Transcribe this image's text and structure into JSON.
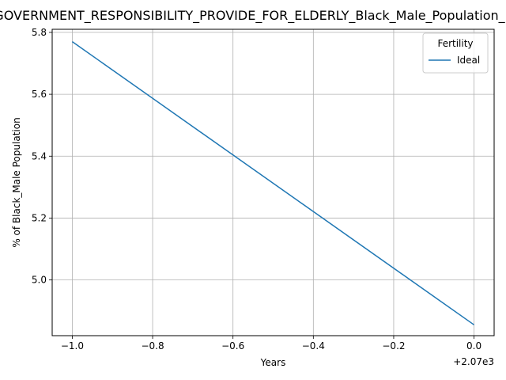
{
  "chart_data": {
    "type": "line",
    "title": "GOVERNMENT_RESPONSIBILITY_PROVIDE_FOR_ELDERLY_Black_Male_Population_Fertility",
    "xlabel": "Years",
    "ylabel": "% of Black_Male Population",
    "x_offset_label": "+2.07e3",
    "xlim": [
      -1.05,
      0.05
    ],
    "ylim": [
      4.82,
      5.81
    ],
    "x_ticks": [
      -1.0,
      -0.8,
      -0.6,
      -0.4,
      -0.2,
      0.0
    ],
    "x_tick_labels": [
      "−1.0",
      "−0.8",
      "−0.6",
      "−0.4",
      "−0.2",
      "0.0"
    ],
    "y_ticks": [
      5.0,
      5.2,
      5.4,
      5.6,
      5.8
    ],
    "y_tick_labels": [
      "5.0",
      "5.2",
      "5.4",
      "5.6",
      "5.8"
    ],
    "grid": true,
    "legend": {
      "title": "Fertility",
      "position": "top-right"
    },
    "series": [
      {
        "name": "Ideal",
        "color": "#1f77b4",
        "x": [
          -1.0,
          0.0
        ],
        "y": [
          5.77,
          4.855
        ]
      }
    ]
  }
}
